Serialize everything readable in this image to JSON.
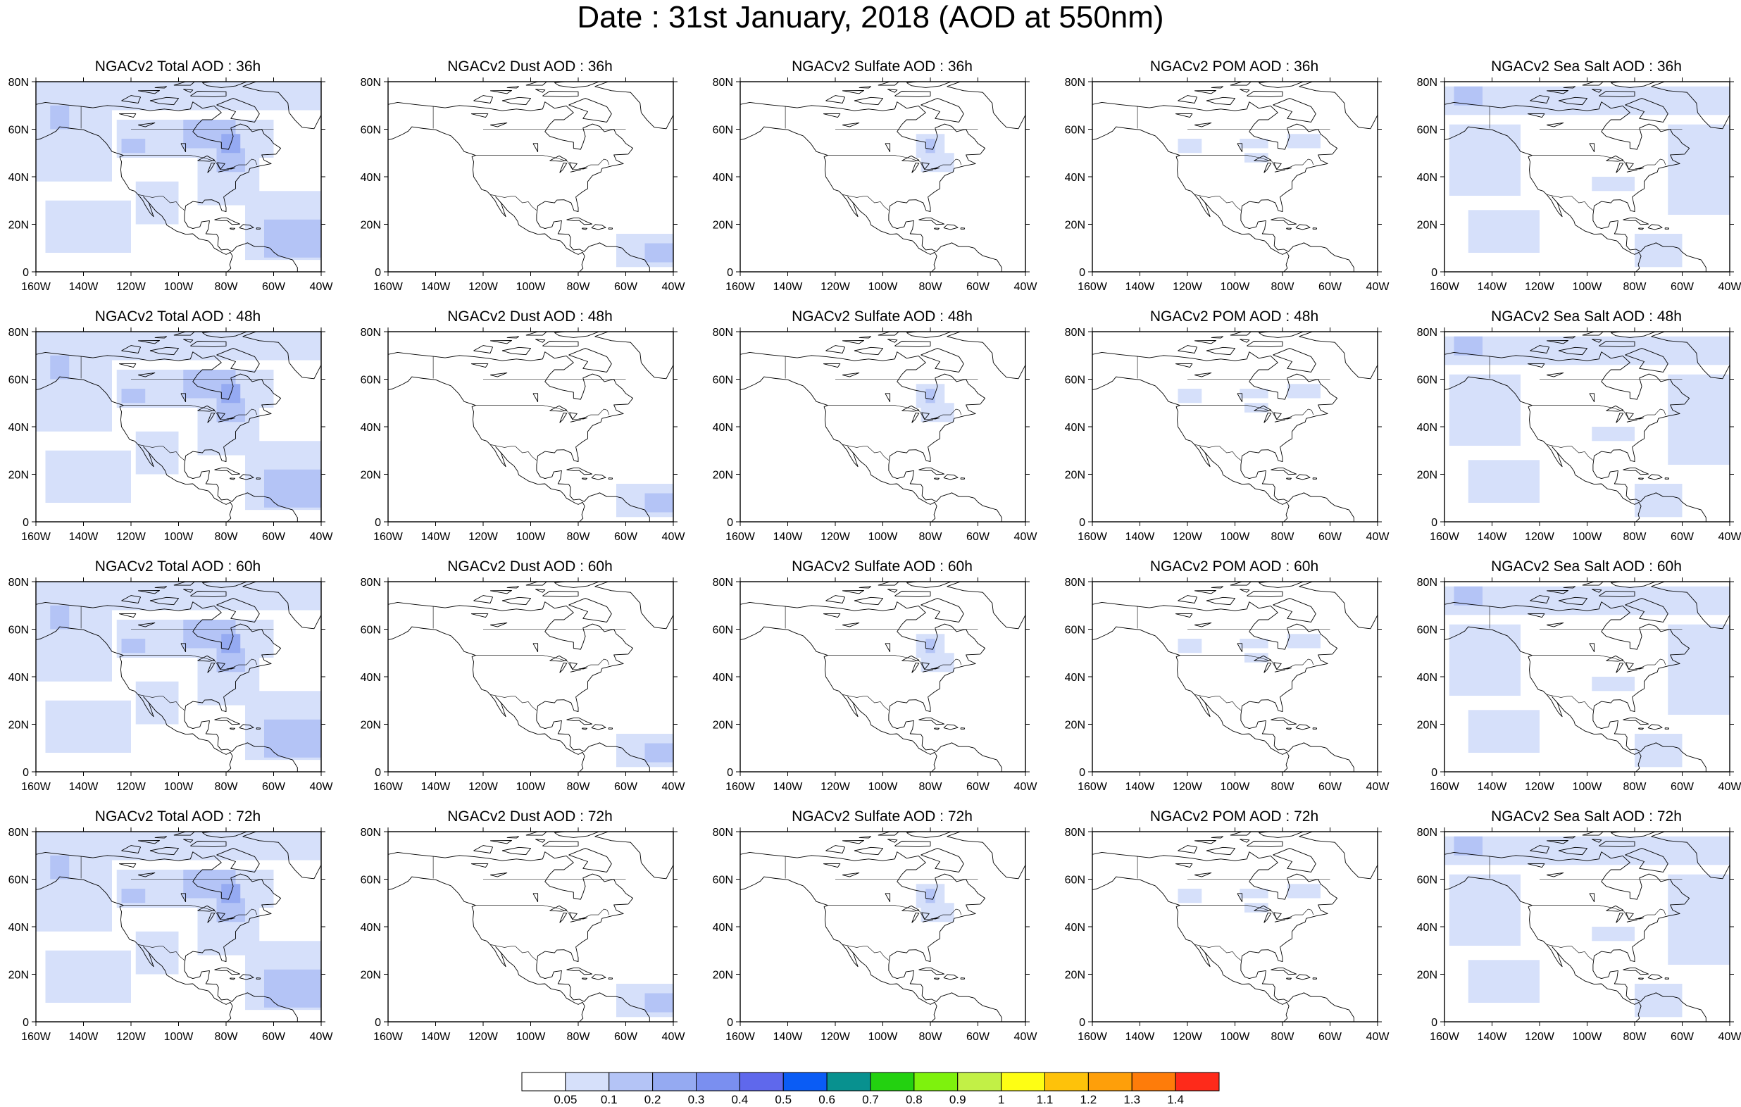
{
  "title": "Date : 31st January, 2018 (AOD at 550nm)",
  "panels": [
    {
      "title": "NGACv2 Total AOD : 36h",
      "species": "total"
    },
    {
      "title": "NGACv2 Dust AOD : 36h",
      "species": "dust"
    },
    {
      "title": "NGACv2 Sulfate AOD : 36h",
      "species": "sulfate"
    },
    {
      "title": "NGACv2 POM AOD : 36h",
      "species": "pom"
    },
    {
      "title": "NGACv2 Sea Salt AOD : 36h",
      "species": "seasalt"
    },
    {
      "title": "NGACv2 Total AOD : 48h",
      "species": "total"
    },
    {
      "title": "NGACv2 Dust AOD : 48h",
      "species": "dust"
    },
    {
      "title": "NGACv2 Sulfate AOD : 48h",
      "species": "sulfate"
    },
    {
      "title": "NGACv2 POM AOD : 48h",
      "species": "pom"
    },
    {
      "title": "NGACv2 Sea Salt AOD : 48h",
      "species": "seasalt"
    },
    {
      "title": "NGACv2 Total AOD : 60h",
      "species": "total"
    },
    {
      "title": "NGACv2 Dust AOD : 60h",
      "species": "dust"
    },
    {
      "title": "NGACv2 Sulfate AOD : 60h",
      "species": "sulfate"
    },
    {
      "title": "NGACv2 POM AOD : 60h",
      "species": "pom"
    },
    {
      "title": "NGACv2 Sea Salt AOD : 60h",
      "species": "seasalt"
    },
    {
      "title": "NGACv2 Total AOD : 72h",
      "species": "total"
    },
    {
      "title": "NGACv2 Dust AOD : 72h",
      "species": "dust"
    },
    {
      "title": "NGACv2 Sulfate AOD : 72h",
      "species": "sulfate"
    },
    {
      "title": "NGACv2 POM AOD : 72h",
      "species": "pom"
    },
    {
      "title": "NGACv2 Sea Salt  AOD : 72h",
      "species": "seasalt"
    }
  ],
  "axes": {
    "x_ticks": [
      "160W",
      "140W",
      "120W",
      "100W",
      "80W",
      "60W",
      "40W"
    ],
    "y_ticks": [
      "80N",
      "60N",
      "40N",
      "20N",
      "0"
    ]
  },
  "colorbar": {
    "colors": [
      "#ffffff",
      "#d6e0fa",
      "#b4c4f6",
      "#95aaf2",
      "#7a8ff0",
      "#5f68ec",
      "#0a5cf5",
      "#08918f",
      "#23d110",
      "#7ef20d",
      "#c2f046",
      "#fefe14",
      "#fec20a",
      "#fe9f0a",
      "#fe7c0a",
      "#fe2a1a"
    ],
    "labels": [
      "0.05",
      "0.1",
      "0.2",
      "0.3",
      "0.4",
      "0.5",
      "0.6",
      "0.7",
      "0.8",
      "0.9",
      "1",
      "1.1",
      "1.2",
      "1.3",
      "1.4"
    ]
  },
  "colors": {
    "light_aod": "#d6e0fa",
    "medium_aod": "#b4c4f6",
    "high_aod": "#95aaf2"
  }
}
